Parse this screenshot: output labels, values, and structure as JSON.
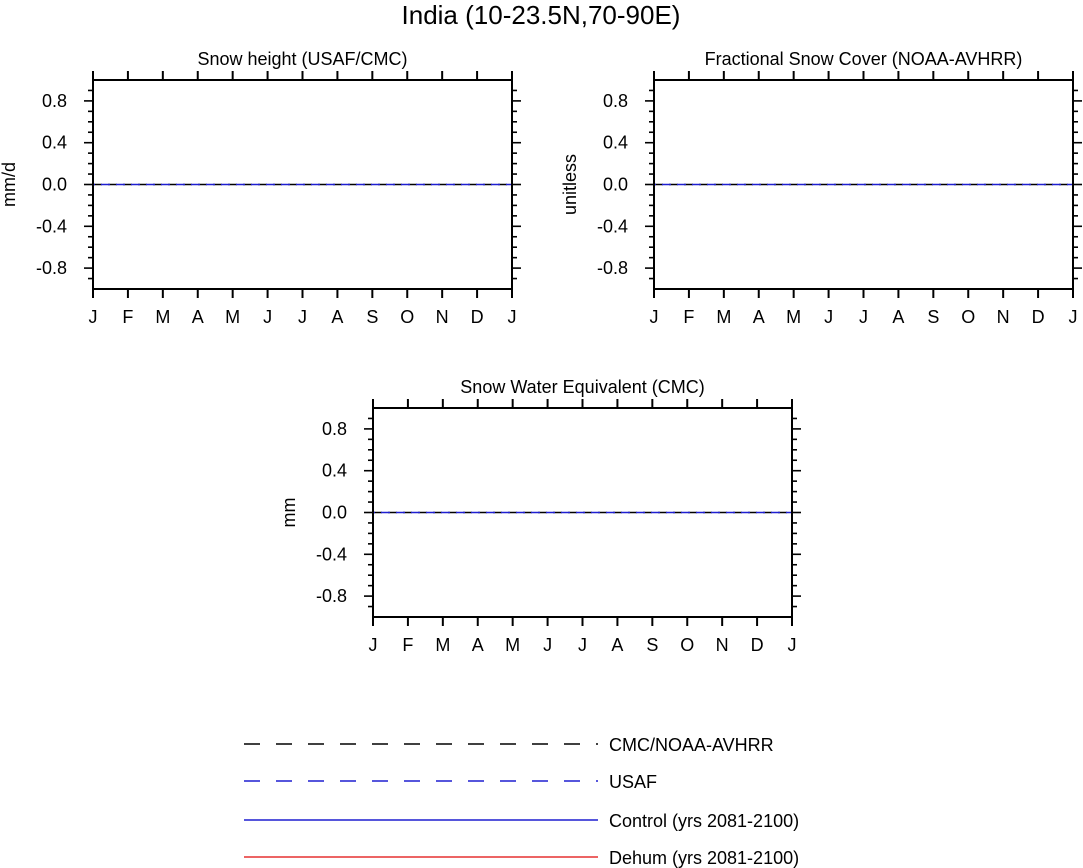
{
  "figure_title": "India (10-23.5N,70-90E)",
  "colors": {
    "obs": "#000000",
    "usaf": "#1f1fd0",
    "control": "#1f1fd0",
    "dehum": "#e63030",
    "frame": "#000000"
  },
  "chart_data": [
    {
      "type": "line",
      "title": "Snow height (USAF/CMC)",
      "ylabel": "mm/d",
      "xlabel": "",
      "categories": [
        "J",
        "F",
        "M",
        "A",
        "M",
        "J",
        "J",
        "A",
        "S",
        "O",
        "N",
        "D",
        "J"
      ],
      "ylim": [
        -1.0,
        1.0
      ],
      "yticks": [
        "0.8",
        "0.4",
        "0.0",
        "-0.4",
        "-0.8"
      ],
      "series": [
        {
          "name": "CMC/NOAA-AVHRR",
          "style": "dashed",
          "values": [
            0,
            0,
            0,
            0,
            0,
            0,
            0,
            0,
            0,
            0,
            0,
            0,
            0
          ]
        },
        {
          "name": "USAF",
          "style": "dashed",
          "values": [
            0,
            0,
            0,
            0,
            0,
            0,
            0,
            0,
            0,
            0,
            0,
            0,
            0
          ]
        }
      ]
    },
    {
      "type": "line",
      "title": "Fractional Snow Cover (NOAA-AVHRR)",
      "ylabel": "unitless",
      "xlabel": "",
      "categories": [
        "J",
        "F",
        "M",
        "A",
        "M",
        "J",
        "J",
        "A",
        "S",
        "O",
        "N",
        "D",
        "J"
      ],
      "ylim": [
        -1.0,
        1.0
      ],
      "yticks": [
        "0.8",
        "0.4",
        "0.0",
        "-0.4",
        "-0.8"
      ],
      "series": [
        {
          "name": "CMC/NOAA-AVHRR",
          "style": "dashed",
          "values": [
            0,
            0,
            0,
            0,
            0,
            0,
            0,
            0,
            0,
            0,
            0,
            0,
            0
          ]
        },
        {
          "name": "USAF",
          "style": "dashed",
          "values": [
            0,
            0,
            0,
            0,
            0,
            0,
            0,
            0,
            0,
            0,
            0,
            0,
            0
          ]
        }
      ]
    },
    {
      "type": "line",
      "title": "Snow Water Equivalent (CMC)",
      "ylabel": "mm",
      "xlabel": "",
      "categories": [
        "J",
        "F",
        "M",
        "A",
        "M",
        "J",
        "J",
        "A",
        "S",
        "O",
        "N",
        "D",
        "J"
      ],
      "ylim": [
        -1.0,
        1.0
      ],
      "yticks": [
        "0.8",
        "0.4",
        "0.0",
        "-0.4",
        "-0.8"
      ],
      "series": [
        {
          "name": "CMC/NOAA-AVHRR",
          "style": "dashed",
          "values": [
            0,
            0,
            0,
            0,
            0,
            0,
            0,
            0,
            0,
            0,
            0,
            0,
            0
          ]
        },
        {
          "name": "USAF",
          "style": "dashed",
          "values": [
            0,
            0,
            0,
            0,
            0,
            0,
            0,
            0,
            0,
            0,
            0,
            0,
            0
          ]
        }
      ]
    }
  ],
  "legend": {
    "placement": "bottom-center",
    "entries": [
      {
        "label": "CMC/NOAA-AVHRR",
        "style": "dashed",
        "color_key": "obs"
      },
      {
        "label": "USAF",
        "style": "dashed",
        "color_key": "usaf"
      },
      {
        "label": "Control (yrs 2081-2100)",
        "style": "solid",
        "color_key": "control"
      },
      {
        "label": "Dehum (yrs 2081-2100)",
        "style": "solid",
        "color_key": "dehum"
      }
    ]
  }
}
